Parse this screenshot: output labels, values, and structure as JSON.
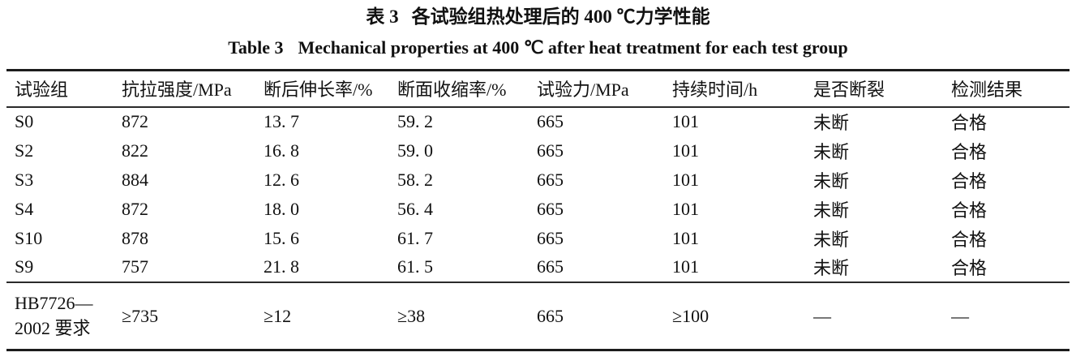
{
  "titles": {
    "zh_label": "表 3",
    "zh_text": "各试验组热处理后的 400 ℃力学性能",
    "en_label": "Table 3",
    "en_text": "Mechanical properties at 400 ℃ after heat treatment for each test group"
  },
  "table": {
    "columns": [
      "试验组",
      "抗拉强度/MPa",
      "断后伸长率/%",
      "断面收缩率/%",
      "试验力/MPa",
      "持续时间/h",
      "是否断裂",
      "检测结果"
    ],
    "rows": [
      [
        "S0",
        "872",
        "13. 7",
        "59. 2",
        "665",
        "101",
        "未断",
        "合格"
      ],
      [
        "S2",
        "822",
        "16. 8",
        "59. 0",
        "665",
        "101",
        "未断",
        "合格"
      ],
      [
        "S3",
        "884",
        "12. 6",
        "58. 2",
        "665",
        "101",
        "未断",
        "合格"
      ],
      [
        "S4",
        "872",
        "18. 0",
        "56. 4",
        "665",
        "101",
        "未断",
        "合格"
      ],
      [
        "S10",
        "878",
        "15. 6",
        "61. 7",
        "665",
        "101",
        "未断",
        "合格"
      ],
      [
        "S9",
        "757",
        "21. 8",
        "61. 5",
        "665",
        "101",
        "未断",
        "合格"
      ]
    ],
    "footer_row": [
      "HB7726—2002 要求",
      "≥735",
      "≥12",
      "≥38",
      "665",
      "≥100",
      "—",
      "—"
    ]
  },
  "colors": {
    "text": "#111111",
    "background": "#ffffff",
    "rule": "#1c1c1c"
  }
}
